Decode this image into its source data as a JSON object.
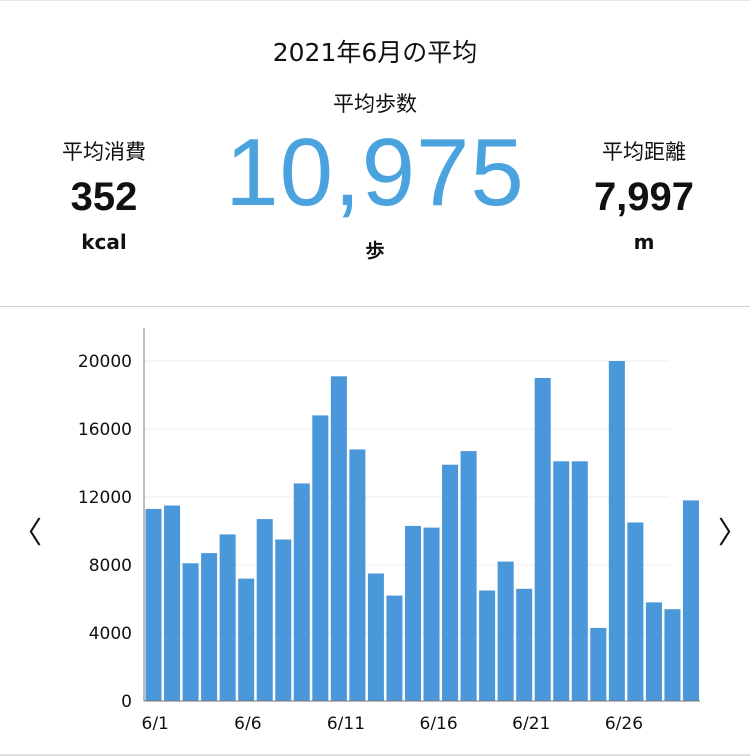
{
  "header": {
    "title": "2021年6月の平均",
    "steps_label": "平均歩数",
    "steps_value": "10,975",
    "steps_unit": "歩",
    "calories": {
      "label": "平均消費",
      "value": "352",
      "unit": "kcal"
    },
    "distance": {
      "label": "平均距離",
      "value": "7,997",
      "unit": "m"
    }
  },
  "nav": {
    "prev": "〈",
    "next": "〉"
  },
  "colors": {
    "accent": "#4aa3df",
    "bar": "#4a97d9"
  },
  "chart_data": {
    "type": "bar",
    "x_tick_labels": [
      "6/1",
      "6/6",
      "6/11",
      "6/16",
      "6/21",
      "6/26"
    ],
    "categories": [
      "6/1",
      "6/2",
      "6/3",
      "6/4",
      "6/5",
      "6/6",
      "6/7",
      "6/8",
      "6/9",
      "6/10",
      "6/11",
      "6/12",
      "6/13",
      "6/14",
      "6/15",
      "6/16",
      "6/17",
      "6/18",
      "6/19",
      "6/20",
      "6/21",
      "6/22",
      "6/23",
      "6/24",
      "6/25",
      "6/26",
      "6/27",
      "6/28",
      "6/29",
      "6/30"
    ],
    "values": [
      11300,
      11500,
      8100,
      8700,
      9800,
      7200,
      10700,
      9500,
      12800,
      16800,
      19100,
      14800,
      7500,
      6200,
      10300,
      10200,
      13900,
      14700,
      6500,
      8200,
      6600,
      19000,
      14100,
      14100,
      4300,
      20000,
      10500,
      5800,
      5400,
      11800
    ],
    "ylim": [
      0,
      20000
    ],
    "yticks": [
      "0",
      "4000",
      "8000",
      "12000",
      "16000",
      "20000"
    ],
    "grid": true
  }
}
